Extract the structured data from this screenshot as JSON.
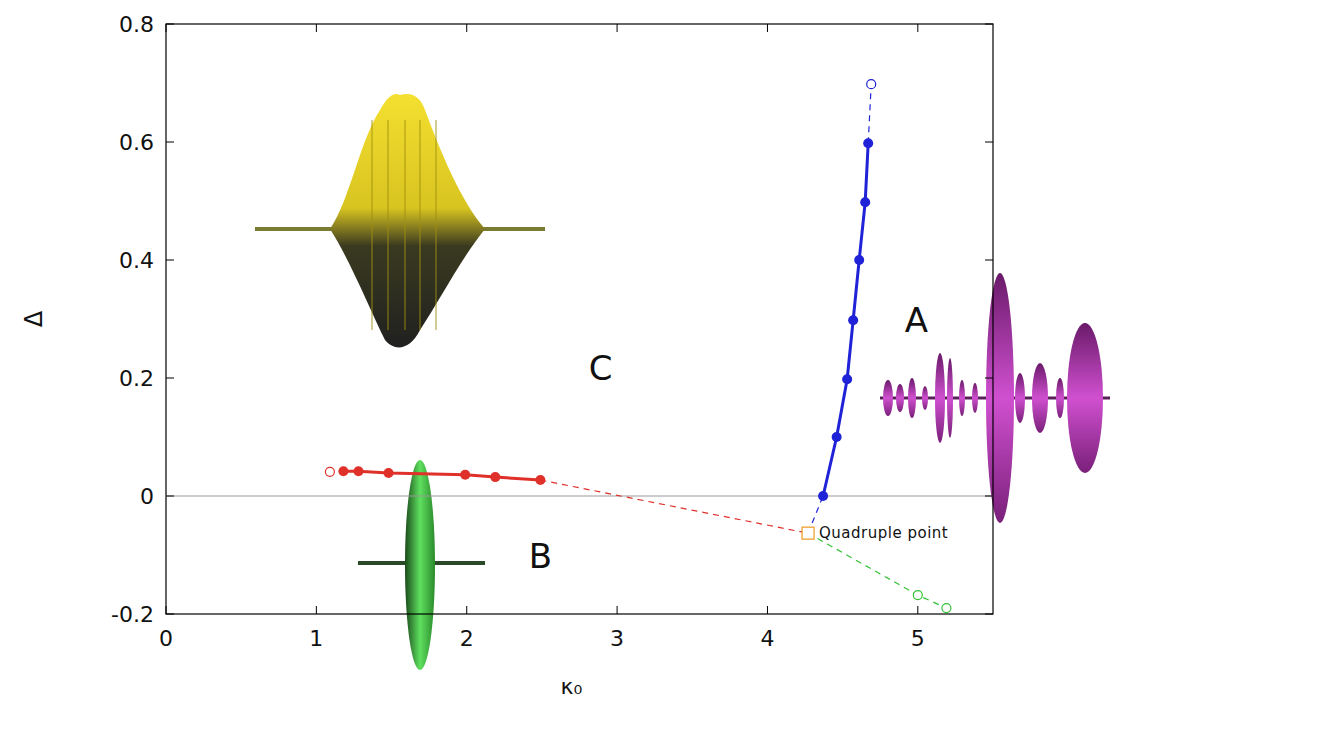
{
  "chart_data": {
    "type": "line",
    "x_label": "κ₀",
    "y_label": "Δ",
    "xlim": [
      0,
      5.5
    ],
    "ylim": [
      -0.2,
      0.8
    ],
    "xticks": [
      0,
      1,
      2,
      3,
      4,
      5
    ],
    "yticks": [
      -0.2,
      0,
      0.2,
      0.4,
      0.6,
      0.8
    ],
    "grid": false,
    "reference_lines": [
      {
        "axis": "y",
        "value": 0
      }
    ],
    "series": [
      {
        "type": "line",
        "color": "#e0302a",
        "line_style": "solid",
        "marker": "circle",
        "x": [
          1.18,
          1.28,
          1.48,
          1.99,
          2.19,
          2.49
        ],
        "values": [
          0.042,
          0.042,
          0.039,
          0.036,
          0.032,
          0.027
        ]
      },
      {
        "type": "line",
        "color": "#e0302a",
        "line_style": "dashed",
        "marker": "none",
        "x": [
          2.49,
          4.27
        ],
        "values": [
          0.027,
          -0.063
        ]
      },
      {
        "type": "scatter",
        "color": "#e0302a",
        "marker": "open_circle",
        "x": [
          1.09
        ],
        "values": [
          0.041
        ]
      },
      {
        "type": "line",
        "color": "#1f22d6",
        "line_style": "solid",
        "marker": "circle",
        "x": [
          4.37,
          4.46,
          4.53,
          4.57,
          4.61,
          4.65,
          4.67
        ],
        "values": [
          0,
          0.1,
          0.198,
          0.298,
          0.4,
          0.498,
          0.598
        ]
      },
      {
        "type": "line",
        "color": "#1f22d6",
        "line_style": "dashed",
        "marker": "none",
        "x": [
          4.67,
          4.69
        ],
        "values": [
          0.598,
          0.698
        ]
      },
      {
        "type": "line",
        "color": "#1f22d6",
        "line_style": "dashed",
        "marker": "none",
        "x": [
          4.27,
          4.37
        ],
        "values": [
          -0.063,
          0
        ]
      },
      {
        "type": "scatter",
        "color": "#1f22d6",
        "marker": "open_circle",
        "x": [
          4.69
        ],
        "values": [
          0.698
        ]
      },
      {
        "type": "line",
        "color": "#33c033",
        "line_style": "dashed",
        "marker": "none",
        "x": [
          4.27,
          5.0,
          5.19
        ],
        "values": [
          -0.063,
          -0.168,
          -0.19
        ]
      },
      {
        "type": "scatter",
        "color": "#33c033",
        "marker": "open_circle",
        "x": [
          5.0,
          5.19
        ],
        "values": [
          -0.168,
          -0.19
        ]
      },
      {
        "type": "scatter",
        "color": "#f0a030",
        "marker": "open_square",
        "x": [
          4.27
        ],
        "values": [
          -0.063
        ]
      }
    ],
    "region_labels": [
      {
        "text": "A",
        "x": 4.99,
        "y": 0.298
      },
      {
        "text": "B",
        "x": 2.49,
        "y": -0.102
      },
      {
        "text": "C",
        "x": 2.89,
        "y": 0.217
      }
    ],
    "annotations": [
      {
        "text": "Quadruple point",
        "x": 4.27,
        "y": -0.063
      }
    ]
  }
}
